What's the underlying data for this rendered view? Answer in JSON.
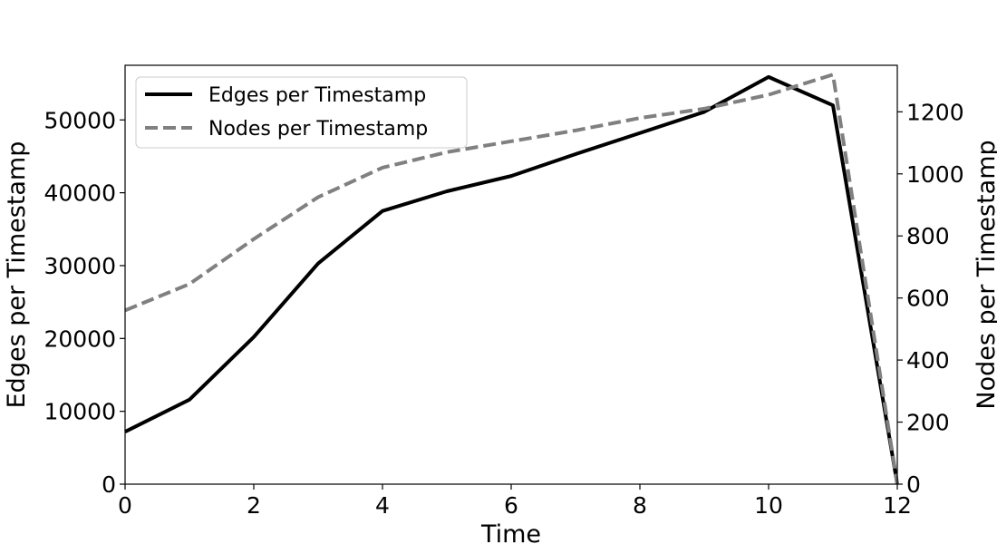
{
  "chart_data": {
    "type": "line",
    "title": "",
    "xlabel": "Time",
    "ylabel": "Edges per Timestamp",
    "y2label": "Nodes per Timestamp",
    "xlim": [
      0,
      12
    ],
    "ylim": [
      0,
      57500
    ],
    "y2lim": [
      0,
      1350
    ],
    "xticks": [
      0,
      2,
      4,
      6,
      8,
      10,
      12
    ],
    "yticks": [
      0,
      10000,
      20000,
      30000,
      40000,
      50000
    ],
    "y2ticks": [
      0,
      200,
      400,
      600,
      800,
      1000,
      1200
    ],
    "x": [
      0,
      1,
      2,
      3,
      4,
      5,
      6,
      7,
      8,
      9,
      10,
      11,
      12
    ],
    "grid": false,
    "legend_position": "top-left",
    "series": [
      {
        "name": "Edges per Timestamp",
        "axis": "left",
        "color": "#000000",
        "style": "solid",
        "values": [
          7200,
          11600,
          20200,
          30300,
          37500,
          40200,
          42300,
          45300,
          48200,
          51100,
          55900,
          52000,
          0
        ]
      },
      {
        "name": "Nodes per Timestamp",
        "axis": "right",
        "color": "#808080",
        "style": "dashed",
        "values": [
          560,
          645,
          790,
          925,
          1020,
          1070,
          1105,
          1140,
          1180,
          1210,
          1255,
          1320,
          0
        ]
      }
    ]
  }
}
